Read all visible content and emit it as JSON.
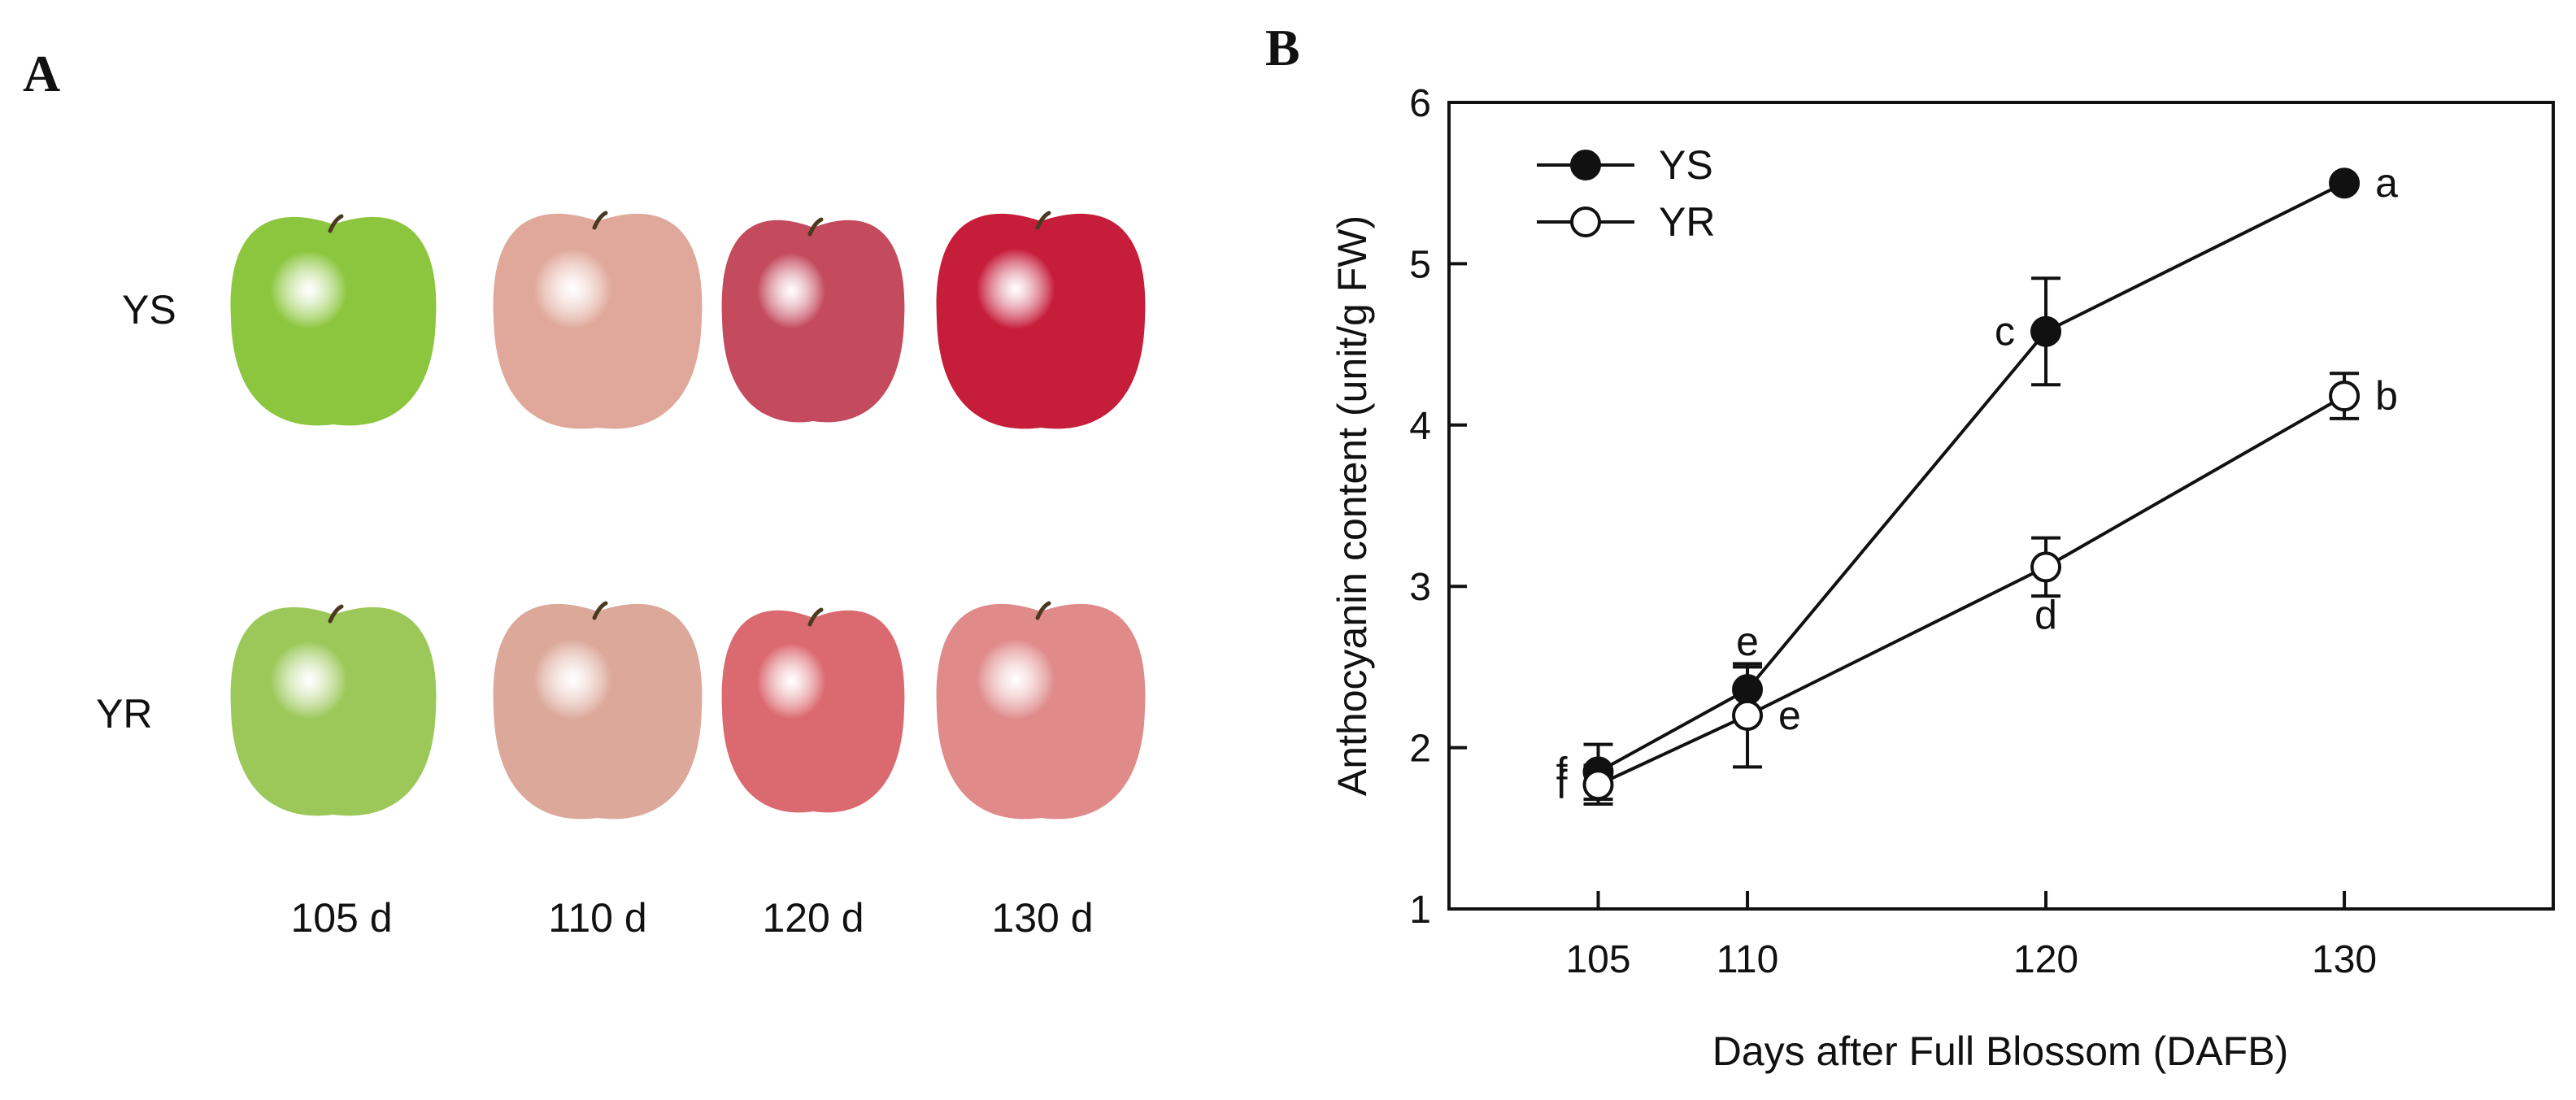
{
  "panels": {
    "a": {
      "letter": "A",
      "rows": [
        "YS",
        "YR"
      ],
      "days": [
        "105 d",
        "110 d",
        "120 d",
        "130 d"
      ],
      "apple_colors": {
        "YS": [
          "#8cc63f",
          "#e0a89a",
          "#c44a5d",
          "#c61d3b"
        ],
        "YR": [
          "#9cc85a",
          "#dca89a",
          "#db6a70",
          "#e08a8a"
        ]
      }
    },
    "b": {
      "letter": "B"
    }
  },
  "chart_data": {
    "type": "line",
    "title": "",
    "xlabel": "Days after Full Blossom (DAFB)",
    "ylabel": "Anthocyanin content (unit/g FW)",
    "x": [
      105,
      110,
      120,
      130
    ],
    "x_ticks": [
      "105",
      "110",
      "120",
      "130"
    ],
    "xlim": [
      100,
      137
    ],
    "ylim": [
      1,
      6
    ],
    "y_ticks": [
      "1",
      "2",
      "3",
      "4",
      "5",
      "6"
    ],
    "legend_position": "top-left",
    "series": [
      {
        "name": "YS",
        "marker": "filled-circle",
        "values": [
          1.85,
          2.36,
          4.58,
          5.5
        ],
        "errors": [
          0.17,
          0.14,
          0.33,
          0.0
        ],
        "labels": [
          "f",
          "e",
          "c",
          "a"
        ],
        "label_side": [
          "left",
          "top",
          "left",
          "right"
        ]
      },
      {
        "name": "YR",
        "marker": "open-circle",
        "values": [
          1.77,
          2.2,
          3.12,
          4.18
        ],
        "errors": [
          0.12,
          0.32,
          0.18,
          0.14
        ],
        "labels": [
          "f",
          "e",
          "d",
          "b"
        ],
        "label_side": [
          "left",
          "right",
          "bottom",
          "right"
        ]
      }
    ]
  }
}
